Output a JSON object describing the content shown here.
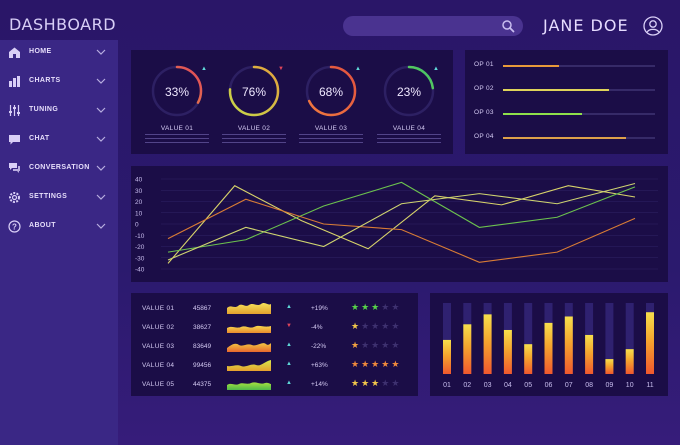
{
  "header": {
    "title": "DASHBOARD",
    "user_name": "JANE DOE",
    "search_placeholder": ""
  },
  "sidebar": {
    "items": [
      {
        "label": "HOME",
        "icon": "home-icon"
      },
      {
        "label": "CHARTS",
        "icon": "bar-chart-icon"
      },
      {
        "label": "TUNING",
        "icon": "sliders-icon"
      },
      {
        "label": "CHAT",
        "icon": "chat-bubble-icon"
      },
      {
        "label": "CONVERSATION",
        "icon": "conversation-icon"
      },
      {
        "label": "SETTINGS",
        "icon": "gear-icon"
      },
      {
        "label": "ABOUT",
        "icon": "question-icon"
      }
    ]
  },
  "gauges": [
    {
      "percent_label": "33%",
      "value": 33,
      "label": "VALUE 01",
      "trend": "up",
      "gradient": [
        "#e9a93a",
        "#e0455b"
      ]
    },
    {
      "percent_label": "76%",
      "value": 76,
      "label": "VALUE 02",
      "trend": "down",
      "gradient": [
        "#c7d94a",
        "#e3a23c"
      ]
    },
    {
      "percent_label": "68%",
      "value": 68,
      "label": "VALUE 03",
      "trend": "up",
      "gradient": [
        "#f07a3e",
        "#e2513f"
      ]
    },
    {
      "percent_label": "23%",
      "value": 23,
      "label": "VALUE 04",
      "trend": "up",
      "gradient": [
        "#9be03c",
        "#3fc06a"
      ]
    }
  ],
  "options": [
    {
      "label": "OP 01",
      "value": 0.37,
      "color": "#e89a3a"
    },
    {
      "label": "OP 02",
      "value": 0.7,
      "color": "#dfd35a"
    },
    {
      "label": "OP 03",
      "value": 0.52,
      "color": "#8fe04b"
    },
    {
      "label": "OP 04",
      "value": 0.81,
      "color": "#dea04a"
    }
  ],
  "line_chart": {
    "y_ticks": [
      "40",
      "30",
      "20",
      "10",
      "0",
      "-10",
      "-20",
      "-30",
      "-40"
    ],
    "ymin": -40,
    "ymax": 40,
    "series": [
      {
        "color": "#d8d36a",
        "values": [
          -35,
          34,
          3,
          -22,
          25,
          17,
          34,
          24
        ]
      },
      {
        "color": "#6cc24e",
        "values": [
          -25,
          -14,
          16,
          37,
          -3,
          6,
          33
        ]
      },
      {
        "color": "#d97c35",
        "values": [
          -13,
          22,
          0,
          -5,
          -34,
          -25,
          5
        ]
      },
      {
        "color": "#cfd470",
        "values": [
          -32,
          -3,
          -20,
          18,
          27,
          18,
          36
        ]
      }
    ]
  },
  "table": {
    "rows": [
      {
        "name": "VALUE 01",
        "number": "45867",
        "trend": "up",
        "change": "+19%",
        "stars": 3,
        "star_color": "#56d348"
      },
      {
        "name": "VALUE 02",
        "number": "38627",
        "trend": "down",
        "change": "-4%",
        "stars": 1,
        "star_color": "#f2c74a"
      },
      {
        "name": "VALUE 03",
        "number": "83649",
        "trend": "up",
        "change": "-22%",
        "stars": 1,
        "star_color": "#f2a241"
      },
      {
        "name": "VALUE 04",
        "number": "99456",
        "trend": "up",
        "change": "+63%",
        "stars": 5,
        "star_color": "#f08a3c"
      },
      {
        "name": "VALUE 05",
        "number": "44375",
        "trend": "up",
        "change": "+14%",
        "stars": 3,
        "star_color": "#f2c74a"
      }
    ]
  },
  "bar_chart": {
    "categories": [
      "01",
      "02",
      "03",
      "04",
      "05",
      "06",
      "07",
      "08",
      "09",
      "10",
      "11"
    ],
    "values": [
      0.48,
      0.7,
      0.84,
      0.62,
      0.42,
      0.72,
      0.81,
      0.55,
      0.21,
      0.35,
      0.87
    ]
  },
  "colors": {
    "panel": "#1b0d47",
    "sidebar": "#3a2785",
    "accent_teal": "#5fd8d8",
    "accent_red": "#e0455b"
  }
}
